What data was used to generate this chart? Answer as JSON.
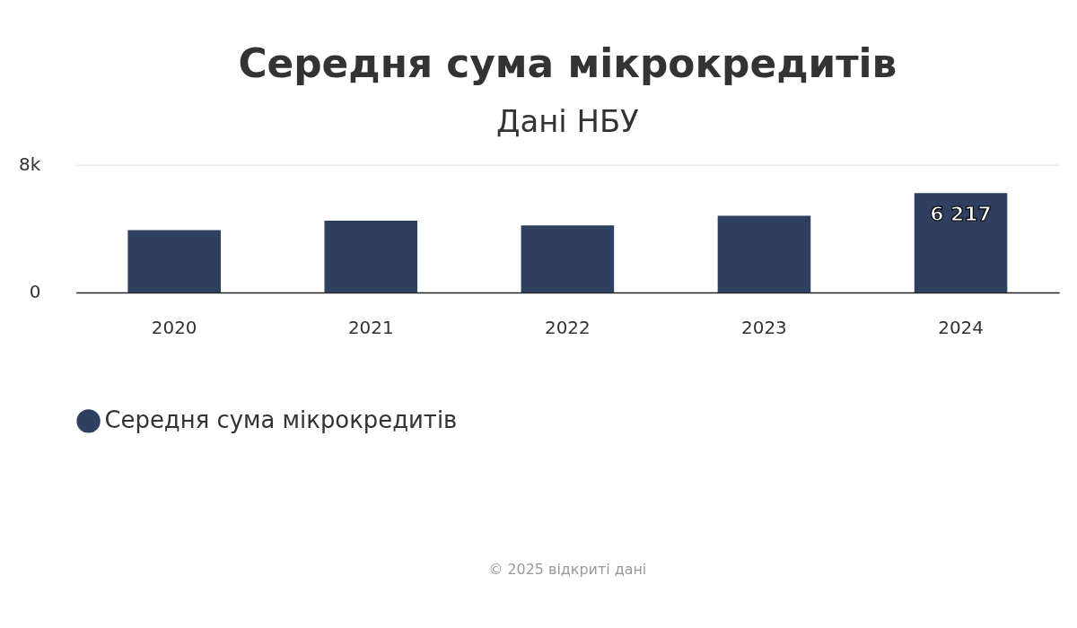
{
  "chart_data": {
    "type": "bar",
    "title": "Середня сума мікрокредитів",
    "subtitle": "Дані НБУ",
    "categories": [
      "2020",
      "2021",
      "2022",
      "2023",
      "2024"
    ],
    "series": [
      {
        "name": "Середня сума мікрокредитів",
        "color": "#2e3f5f",
        "values": [
          3900,
          4500,
          4200,
          4800,
          6217
        ],
        "value_labels": [
          null,
          null,
          null,
          null,
          "6 217"
        ]
      }
    ],
    "ylim": [
      0,
      8000
    ],
    "yticks": [
      {
        "value": 0,
        "label": "0"
      },
      {
        "value": 8000,
        "label": "8k"
      }
    ],
    "grid": "y",
    "legend": "bottom",
    "annotations": [
      "© 2025 відкриті дані"
    ]
  }
}
